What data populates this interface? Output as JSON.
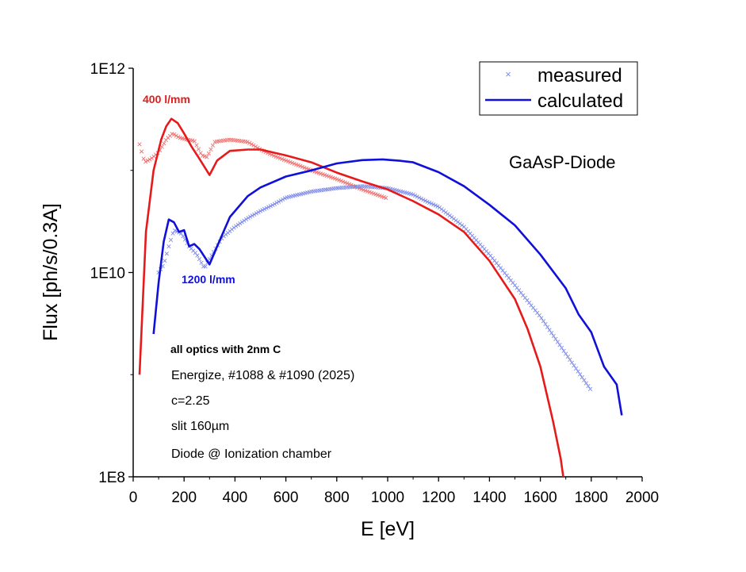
{
  "chart_data": {
    "type": "line",
    "xlabel": "E [eV]",
    "ylabel": "Flux [ph/s/0.3A]",
    "xlim": [
      0,
      2000
    ],
    "ylim_log10": [
      8,
      12
    ],
    "y_scale": "log",
    "x_ticks": [
      "0",
      "200",
      "400",
      "600",
      "800",
      "1000",
      "1200",
      "1400",
      "1600",
      "1800",
      "2000"
    ],
    "y_ticks": [
      "1E8",
      "1E10",
      "1E12"
    ],
    "legend": {
      "position": "top-right",
      "entries": [
        {
          "label": "measured",
          "marker": "x",
          "color": "#6f7fe0"
        },
        {
          "label": "calculated",
          "marker": "line",
          "color": "#1010d8"
        }
      ]
    },
    "annotations": {
      "label_400": "400 l/mm",
      "label_1200": "1200 l/mm",
      "diode": "GaAsP-Diode",
      "optics": "all optics with 2nm C",
      "energize": "Energize, #1088 & #1090 (2025)",
      "c": "c=2.25",
      "slit": "slit 160µm",
      "diode_chamber": "Diode @ Ionization chamber"
    },
    "series": [
      {
        "name": "400 l/mm calculated",
        "grating": "400 l/mm",
        "kind": "calculated",
        "color": "#e61a1a",
        "points": [
          [
            25,
            1000000000.0
          ],
          [
            50,
            25000000000.0
          ],
          [
            80,
            100000000000.0
          ],
          [
            110,
            200000000000.0
          ],
          [
            130,
            270000000000.0
          ],
          [
            150,
            320000000000.0
          ],
          [
            175,
            290000000000.0
          ],
          [
            200,
            230000000000.0
          ],
          [
            230,
            170000000000.0
          ],
          [
            260,
            130000000000.0
          ],
          [
            300,
            90000000000.0
          ],
          [
            330,
            125000000000.0
          ],
          [
            380,
            155000000000.0
          ],
          [
            450,
            160000000000.0
          ],
          [
            500,
            160000000000.0
          ],
          [
            600,
            140000000000.0
          ],
          [
            700,
            120000000000.0
          ],
          [
            800,
            95000000000.0
          ],
          [
            900,
            78000000000.0
          ],
          [
            1000,
            65000000000.0
          ],
          [
            1100,
            50000000000.0
          ],
          [
            1200,
            37000000000.0
          ],
          [
            1300,
            25000000000.0
          ],
          [
            1400,
            13000000000.0
          ],
          [
            1500,
            5500000000.0
          ],
          [
            1550,
            2800000000.0
          ],
          [
            1600,
            1200000000.0
          ],
          [
            1650,
            350000000.0
          ],
          [
            1680,
            150000000.0
          ],
          [
            1690,
            100000000.0
          ]
        ]
      },
      {
        "name": "1200 l/mm calculated",
        "grating": "1200 l/mm",
        "kind": "calculated",
        "color": "#1010d8",
        "points": [
          [
            80,
            2500000000.0
          ],
          [
            100,
            8000000000.0
          ],
          [
            120,
            20000000000.0
          ],
          [
            140,
            33000000000.0
          ],
          [
            160,
            31000000000.0
          ],
          [
            180,
            25000000000.0
          ],
          [
            200,
            26000000000.0
          ],
          [
            220,
            18000000000.0
          ],
          [
            240,
            19000000000.0
          ],
          [
            260,
            17000000000.0
          ],
          [
            300,
            12000000000.0
          ],
          [
            330,
            18000000000.0
          ],
          [
            380,
            35000000000.0
          ],
          [
            450,
            56000000000.0
          ],
          [
            500,
            68000000000.0
          ],
          [
            600,
            87000000000.0
          ],
          [
            700,
            100000000000.0
          ],
          [
            800,
            117000000000.0
          ],
          [
            900,
            126000000000.0
          ],
          [
            980,
            128000000000.0
          ],
          [
            1050,
            124000000000.0
          ],
          [
            1100,
            120000000000.0
          ],
          [
            1200,
            96000000000.0
          ],
          [
            1300,
            70000000000.0
          ],
          [
            1400,
            46000000000.0
          ],
          [
            1500,
            29000000000.0
          ],
          [
            1600,
            15000000000.0
          ],
          [
            1700,
            7000000000.0
          ],
          [
            1750,
            3900000000.0
          ],
          [
            1800,
            2600000000.0
          ],
          [
            1850,
            1200000000.0
          ],
          [
            1900,
            800000000.0
          ],
          [
            1920,
            400000000.0
          ]
        ]
      },
      {
        "name": "400 l/mm measured",
        "grating": "400 l/mm",
        "kind": "measured",
        "color": "#f07070",
        "points": [
          [
            25,
            180000000000.0
          ],
          [
            45,
            120000000000.0
          ],
          [
            70,
            130000000000.0
          ],
          [
            100,
            150000000000.0
          ],
          [
            130,
            200000000000.0
          ],
          [
            155,
            230000000000.0
          ],
          [
            180,
            210000000000.0
          ],
          [
            210,
            200000000000.0
          ],
          [
            240,
            195000000000.0
          ],
          [
            270,
            140000000000.0
          ],
          [
            290,
            135000000000.0
          ],
          [
            320,
            190000000000.0
          ],
          [
            380,
            200000000000.0
          ],
          [
            450,
            190000000000.0
          ],
          [
            500,
            160000000000.0
          ],
          [
            550,
            140000000000.0
          ],
          [
            600,
            125000000000.0
          ],
          [
            700,
            100000000000.0
          ],
          [
            800,
            82000000000.0
          ],
          [
            900,
            65000000000.0
          ],
          [
            1000,
            53000000000.0
          ]
        ]
      },
      {
        "name": "1200 l/mm measured",
        "grating": "1200 l/mm",
        "kind": "measured",
        "color": "#7d8ae8",
        "points": [
          [
            100,
            10000000000.0
          ],
          [
            120,
            12000000000.0
          ],
          [
            140,
            18000000000.0
          ],
          [
            160,
            26000000000.0
          ],
          [
            190,
            24000000000.0
          ],
          [
            220,
            18000000000.0
          ],
          [
            250,
            15000000000.0
          ],
          [
            280,
            11000000000.0
          ],
          [
            310,
            15000000000.0
          ],
          [
            350,
            22000000000.0
          ],
          [
            400,
            28000000000.0
          ],
          [
            450,
            34000000000.0
          ],
          [
            500,
            40000000000.0
          ],
          [
            550,
            46000000000.0
          ],
          [
            600,
            54000000000.0
          ],
          [
            700,
            62000000000.0
          ],
          [
            800,
            67000000000.0
          ],
          [
            900,
            70000000000.0
          ],
          [
            1000,
            67000000000.0
          ],
          [
            1100,
            58000000000.0
          ],
          [
            1150,
            50000000000.0
          ],
          [
            1200,
            44000000000.0
          ],
          [
            1300,
            28000000000.0
          ],
          [
            1400,
            15000000000.0
          ],
          [
            1500,
            7500000000.0
          ],
          [
            1600,
            3700000000.0
          ],
          [
            1700,
            1600000000.0
          ],
          [
            1800,
            700000000.0
          ]
        ]
      }
    ]
  }
}
